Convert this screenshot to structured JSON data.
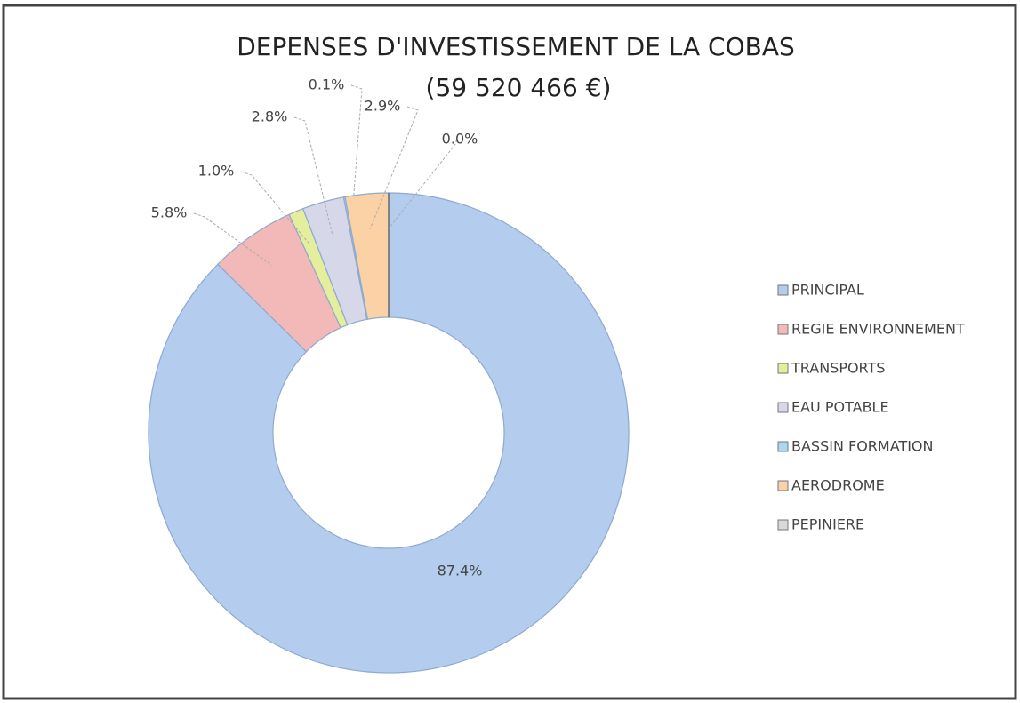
{
  "chart_data": {
    "type": "pie",
    "title": "DEPENSES D'INVESTISSEMENT DE LA COBAS",
    "subtitle": "(59 520 466 €)",
    "categories": [
      "PRINCIPAL",
      "REGIE ENVIRONNEMENT",
      "TRANSPORTS",
      "EAU POTABLE",
      "BASSIN FORMATION",
      "AERODROME",
      "PEPINIERE"
    ],
    "values": [
      87.4,
      5.8,
      1.0,
      2.8,
      0.1,
      2.9,
      0.0
    ],
    "value_labels": [
      "87.4%",
      "5.8%",
      "1.0%",
      "2.8%",
      "0.1%",
      "2.9%",
      "0.0%"
    ],
    "colors": [
      "#b4cdee",
      "#f3b9b9",
      "#e4ee9c",
      "#d6d8ea",
      "#a9d9ef",
      "#fbd2a6",
      "#d9d9d9"
    ],
    "legend": "right"
  }
}
